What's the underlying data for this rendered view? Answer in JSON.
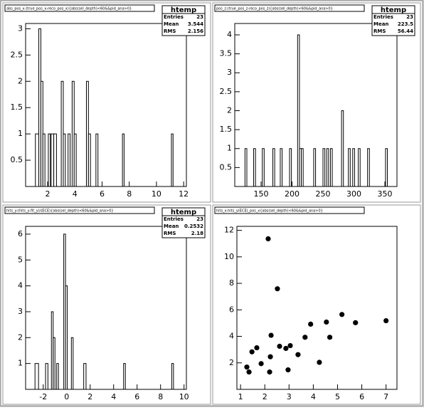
{
  "chart_data": [
    {
      "type": "histogram",
      "title": "abs_pos_x:(true_pos_x-reco_pos_x){abs(sel_depth)<60&&pid_ana>0}",
      "bins": [
        1.1,
        1.35,
        1.5,
        1.65,
        1.8,
        2.05,
        2.2,
        2.25,
        2.45,
        2.65,
        3.0,
        3.15,
        3.3,
        3.5,
        3.65,
        3.8,
        3.95,
        4.1,
        4.85,
        5.0,
        5.15,
        5.55,
        5.7,
        7.5,
        7.62,
        11.1,
        11.22
      ],
      "values": [
        1,
        3,
        2,
        1,
        0,
        1,
        0,
        1,
        1,
        0,
        2,
        1,
        0,
        1,
        0,
        2,
        1,
        0,
        2,
        1,
        0,
        1,
        0,
        1,
        0,
        1
      ],
      "xlim": [
        0.38,
        12.2
      ],
      "ylim": [
        0,
        3.1
      ],
      "xticks": [
        2,
        4,
        6,
        8,
        10,
        12
      ],
      "yticks": [
        0.5,
        1,
        1.5,
        2,
        2.5,
        3
      ],
      "stats": {
        "title": "htemp",
        "rows": [
          [
            "Entries",
            23
          ],
          [
            "Mean",
            3.544
          ],
          [
            "RMS",
            2.156
          ]
        ]
      }
    },
    {
      "type": "histogram",
      "title": "pos_z:(true_pos_z-reco_pos_z){abs(sel_depth)<60&&pid_ana>0}",
      "bins": [
        124,
        127,
        138,
        141,
        152,
        155,
        169,
        172,
        181,
        184,
        196,
        199,
        209,
        212,
        215,
        218,
        235,
        238,
        250,
        253,
        256,
        259,
        262,
        265,
        280,
        283,
        291,
        294,
        298,
        301,
        307,
        310,
        322,
        325,
        351,
        354
      ],
      "values": [
        1,
        0,
        1,
        0,
        1,
        0,
        1,
        0,
        1,
        0,
        1,
        0,
        4,
        1,
        1,
        0,
        1,
        0,
        1,
        0,
        1,
        0,
        1,
        0,
        2,
        0,
        1,
        0,
        1,
        0,
        1,
        0,
        1,
        0,
        1
      ],
      "xlim": [
        107.5,
        369.5
      ],
      "ylim": [
        0,
        4.3
      ],
      "xticks": [
        150,
        200,
        250,
        300,
        350
      ],
      "yticks": [
        0.5,
        1,
        1.5,
        2,
        2.5,
        3,
        3.5,
        4
      ],
      "stats": {
        "title": "htemp",
        "rows": [
          [
            "Entries",
            23
          ],
          [
            "Mean",
            223.5
          ],
          [
            "RMS",
            56.44
          ]
        ]
      }
    },
    {
      "type": "histogram",
      "title": "hits_y:(hits_y-fit_y)/(ECE){abs(sel_depth)<60&&pid_ana>0}",
      "bins": [
        -2.7,
        -2.4,
        -1.8,
        -1.6,
        -1.3,
        -1.15,
        -1.0,
        -0.85,
        -0.7,
        -0.25,
        -0.1,
        0.05,
        0.4,
        0.55,
        1.45,
        1.65,
        4.85,
        5.0,
        8.95,
        9.1
      ],
      "values": [
        1,
        0,
        1,
        0,
        3,
        2,
        0,
        1,
        0,
        6,
        4,
        0,
        2,
        0,
        1,
        0,
        1,
        0,
        1
      ],
      "xlim": [
        -3.5,
        10.2
      ],
      "ylim": [
        0,
        6.3
      ],
      "xticks": [
        -2,
        0,
        2,
        4,
        6,
        8,
        10
      ],
      "yticks": [
        1,
        2,
        3,
        4,
        5,
        6
      ],
      "stats": {
        "title": "htemp",
        "rows": [
          [
            "Entries",
            23
          ],
          [
            "Mean",
            0.2532
          ],
          [
            "RMS",
            2.18
          ]
        ]
      }
    },
    {
      "type": "scatter",
      "title": "hits_x:hits_y(ECE)_pos_x{abs(sel_depth)<60&&pid_ana>0}",
      "x": [
        1.26,
        1.35,
        1.47,
        1.67,
        1.85,
        2.14,
        2.2,
        2.23,
        2.26,
        2.52,
        2.61,
        2.87,
        2.96,
        3.05,
        3.37,
        3.66,
        3.89,
        4.25,
        4.54,
        4.68,
        5.18,
        5.74,
        7.0
      ],
      "values": [
        1.68,
        1.31,
        2.83,
        3.14,
        1.94,
        11.36,
        1.31,
        2.46,
        4.08,
        7.59,
        3.25,
        3.09,
        1.47,
        3.3,
        2.62,
        3.93,
        4.92,
        2.04,
        5.08,
        3.93,
        5.65,
        5.03,
        5.18
      ],
      "xlim": [
        0.85,
        7.45
      ],
      "ylim": [
        0,
        12.3
      ],
      "xticks": [
        1,
        2,
        3,
        4,
        5,
        6,
        7
      ],
      "yticks": [
        2,
        4,
        6,
        8,
        10,
        12
      ]
    }
  ]
}
